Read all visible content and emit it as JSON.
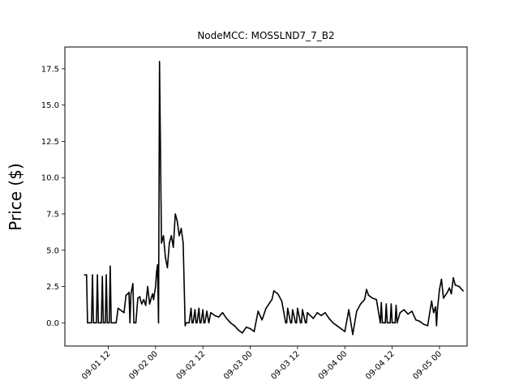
{
  "chart_data": {
    "type": "line",
    "title": "NodeMCC: MOSSLND7_7_B2",
    "xlabel": "",
    "ylabel": "Price ($)",
    "xlim": [
      "2022-09-01 01:00",
      "2022-09-05 07:00"
    ],
    "ylim": [
      -1.6,
      19.0
    ],
    "yticks": [
      0.0,
      2.5,
      5.0,
      7.5,
      10.0,
      12.5,
      15.0,
      17.5
    ],
    "ytick_labels": [
      "0.0",
      "2.5",
      "5.0",
      "7.5",
      "10.0",
      "12.5",
      "15.0",
      "17.5"
    ],
    "xticks": [
      "2022-09-01 12:00",
      "2022-09-02 00:00",
      "2022-09-02 12:00",
      "2022-09-03 00:00",
      "2022-09-03 12:00",
      "2022-09-04 00:00",
      "2022-09-04 12:00",
      "2022-09-05 00:00"
    ],
    "xtick_labels": [
      "09-01 12",
      "09-02 00",
      "09-02 12",
      "09-03 00",
      "09-03 12",
      "09-04 00",
      "09-04 12",
      "09-05 00"
    ],
    "grid": false,
    "series": [
      {
        "color": "#000000",
        "x": [
          "2022-09-01 06:00",
          "2022-09-01 06:30",
          "2022-09-01 06:45",
          "2022-09-01 07:45",
          "2022-09-01 08:00",
          "2022-09-01 08:15",
          "2022-09-01 09:00",
          "2022-09-01 09:15",
          "2022-09-01 09:30",
          "2022-09-01 10:15",
          "2022-09-01 10:30",
          "2022-09-01 10:45",
          "2022-09-01 11:15",
          "2022-09-01 11:30",
          "2022-09-01 11:45",
          "2022-09-01 12:15",
          "2022-09-01 12:30",
          "2022-09-01 12:45",
          "2022-09-01 13:45",
          "2022-09-01 14:00",
          "2022-09-01 14:30",
          "2022-09-01 15:30",
          "2022-09-01 16:00",
          "2022-09-01 16:30",
          "2022-09-01 17:00",
          "2022-09-01 17:15",
          "2022-09-01 17:30",
          "2022-09-01 17:45",
          "2022-09-01 18:15",
          "2022-09-01 18:30",
          "2022-09-01 19:00",
          "2022-09-01 19:30",
          "2022-09-01 20:00",
          "2022-09-01 20:15",
          "2022-09-01 20:30",
          "2022-09-01 21:00",
          "2022-09-01 21:30",
          "2022-09-01 22:00",
          "2022-09-01 22:30",
          "2022-09-01 23:00",
          "2022-09-01 23:15",
          "2022-09-01 23:30",
          "2022-09-02 00:00",
          "2022-09-02 00:15",
          "2022-09-02 00:30",
          "2022-09-02 00:45",
          "2022-09-02 01:00",
          "2022-09-02 01:30",
          "2022-09-02 02:00",
          "2022-09-02 02:30",
          "2022-09-02 03:00",
          "2022-09-02 03:30",
          "2022-09-02 04:00",
          "2022-09-02 04:30",
          "2022-09-02 05:00",
          "2022-09-02 05:30",
          "2022-09-02 06:00",
          "2022-09-02 06:30",
          "2022-09-02 07:00",
          "2022-09-02 07:30",
          "2022-09-02 07:45",
          "2022-09-02 08:00",
          "2022-09-02 08:30",
          "2022-09-02 09:00",
          "2022-09-02 09:15",
          "2022-09-02 09:30",
          "2022-09-02 10:00",
          "2022-09-02 10:15",
          "2022-09-02 10:30",
          "2022-09-02 11:00",
          "2022-09-02 11:15",
          "2022-09-02 11:30",
          "2022-09-02 12:00",
          "2022-09-02 12:15",
          "2022-09-02 12:30",
          "2022-09-02 13:00",
          "2022-09-02 13:30",
          "2022-09-02 14:00",
          "2022-09-02 15:00",
          "2022-09-02 16:00",
          "2022-09-02 17:00",
          "2022-09-02 18:00",
          "2022-09-02 19:00",
          "2022-09-02 20:00",
          "2022-09-02 21:00",
          "2022-09-02 22:00",
          "2022-09-02 23:00",
          "2022-09-03 00:00",
          "2022-09-03 01:00",
          "2022-09-03 02:00",
          "2022-09-03 03:00",
          "2022-09-03 04:00",
          "2022-09-03 05:00",
          "2022-09-03 05:30",
          "2022-09-03 06:00",
          "2022-09-03 07:00",
          "2022-09-03 08:00",
          "2022-09-03 09:00",
          "2022-09-03 09:15",
          "2022-09-03 09:30",
          "2022-09-03 10:15",
          "2022-09-03 10:30",
          "2022-09-03 10:45",
          "2022-09-03 11:30",
          "2022-09-03 11:45",
          "2022-09-03 12:00",
          "2022-09-03 12:45",
          "2022-09-03 13:00",
          "2022-09-03 13:15",
          "2022-09-03 14:00",
          "2022-09-03 14:15",
          "2022-09-03 14:30",
          "2022-09-03 16:00",
          "2022-09-03 17:00",
          "2022-09-03 18:00",
          "2022-09-03 19:00",
          "2022-09-03 20:00",
          "2022-09-03 21:00",
          "2022-09-03 22:00",
          "2022-09-03 23:00",
          "2022-09-04 00:00",
          "2022-09-04 01:00",
          "2022-09-04 02:00",
          "2022-09-04 03:00",
          "2022-09-04 04:00",
          "2022-09-04 05:00",
          "2022-09-04 05:30",
          "2022-09-04 06:00",
          "2022-09-04 07:00",
          "2022-09-04 08:00",
          "2022-09-04 09:00",
          "2022-09-04 09:15",
          "2022-09-04 09:30",
          "2022-09-04 10:15",
          "2022-09-04 10:30",
          "2022-09-04 10:45",
          "2022-09-04 11:30",
          "2022-09-04 11:45",
          "2022-09-04 12:00",
          "2022-09-04 12:45",
          "2022-09-04 13:00",
          "2022-09-04 13:15",
          "2022-09-04 14:00",
          "2022-09-04 15:00",
          "2022-09-04 16:00",
          "2022-09-04 17:00",
          "2022-09-04 18:00",
          "2022-09-04 19:00",
          "2022-09-04 20:00",
          "2022-09-04 21:00",
          "2022-09-04 22:00",
          "2022-09-04 22:30",
          "2022-09-04 23:00",
          "2022-09-04 23:15",
          "2022-09-04 23:30",
          "2022-09-05 00:00",
          "2022-09-05 00:30",
          "2022-09-05 01:00",
          "2022-09-05 01:30",
          "2022-09-05 02:00",
          "2022-09-05 02:30",
          "2022-09-05 03:00",
          "2022-09-05 03:30",
          "2022-09-05 04:00",
          "2022-09-05 05:00",
          "2022-09-05 06:00"
        ],
        "y": [
          3.3,
          3.3,
          0.0,
          0.0,
          3.3,
          0.0,
          0.0,
          3.3,
          0.0,
          0.0,
          3.2,
          0.0,
          0.0,
          3.3,
          0.0,
          0.0,
          3.9,
          0.0,
          0.0,
          0.0,
          1.0,
          0.8,
          0.7,
          1.9,
          2.0,
          2.1,
          0.0,
          2.0,
          2.7,
          0.0,
          0.0,
          1.7,
          1.8,
          1.5,
          1.3,
          1.6,
          1.2,
          2.5,
          1.3,
          1.8,
          2.0,
          1.6,
          2.5,
          3.5,
          4.0,
          0.0,
          18.0,
          5.5,
          6.0,
          4.5,
          3.8,
          5.5,
          6.0,
          5.2,
          7.5,
          7.0,
          6.0,
          6.5,
          5.5,
          -0.2,
          0.0,
          0.0,
          0.0,
          1.0,
          0.0,
          0.0,
          0.9,
          0.0,
          0.0,
          1.0,
          0.0,
          0.0,
          0.9,
          0.0,
          0.0,
          0.8,
          0.0,
          0.7,
          0.5,
          0.4,
          0.7,
          0.3,
          0.0,
          -0.2,
          -0.5,
          -0.7,
          -0.3,
          -0.4,
          -0.6,
          0.8,
          0.2,
          1.0,
          1.4,
          1.6,
          2.2,
          2.0,
          1.5,
          0.0,
          0.0,
          1.0,
          0.0,
          0.0,
          0.9,
          0.0,
          0.0,
          1.0,
          0.0,
          0.0,
          0.9,
          0.0,
          0.0,
          0.7,
          0.3,
          0.7,
          0.5,
          0.7,
          0.3,
          0.0,
          -0.2,
          -0.4,
          -0.6,
          0.9,
          -0.8,
          0.8,
          1.3,
          1.6,
          2.3,
          1.9,
          1.7,
          1.6,
          0.0,
          1.4,
          0.0,
          0.0,
          1.3,
          0.0,
          0.0,
          1.3,
          0.0,
          0.0,
          1.2,
          0.0,
          0.7,
          0.9,
          0.6,
          0.8,
          0.2,
          0.1,
          -0.1,
          -0.2,
          1.5,
          0.7,
          1.1,
          -0.2,
          1.0,
          2.3,
          3.0,
          1.7,
          1.9,
          2.1,
          2.4,
          2.0,
          3.1,
          2.6,
          2.5,
          2.2
        ]
      }
    ]
  }
}
